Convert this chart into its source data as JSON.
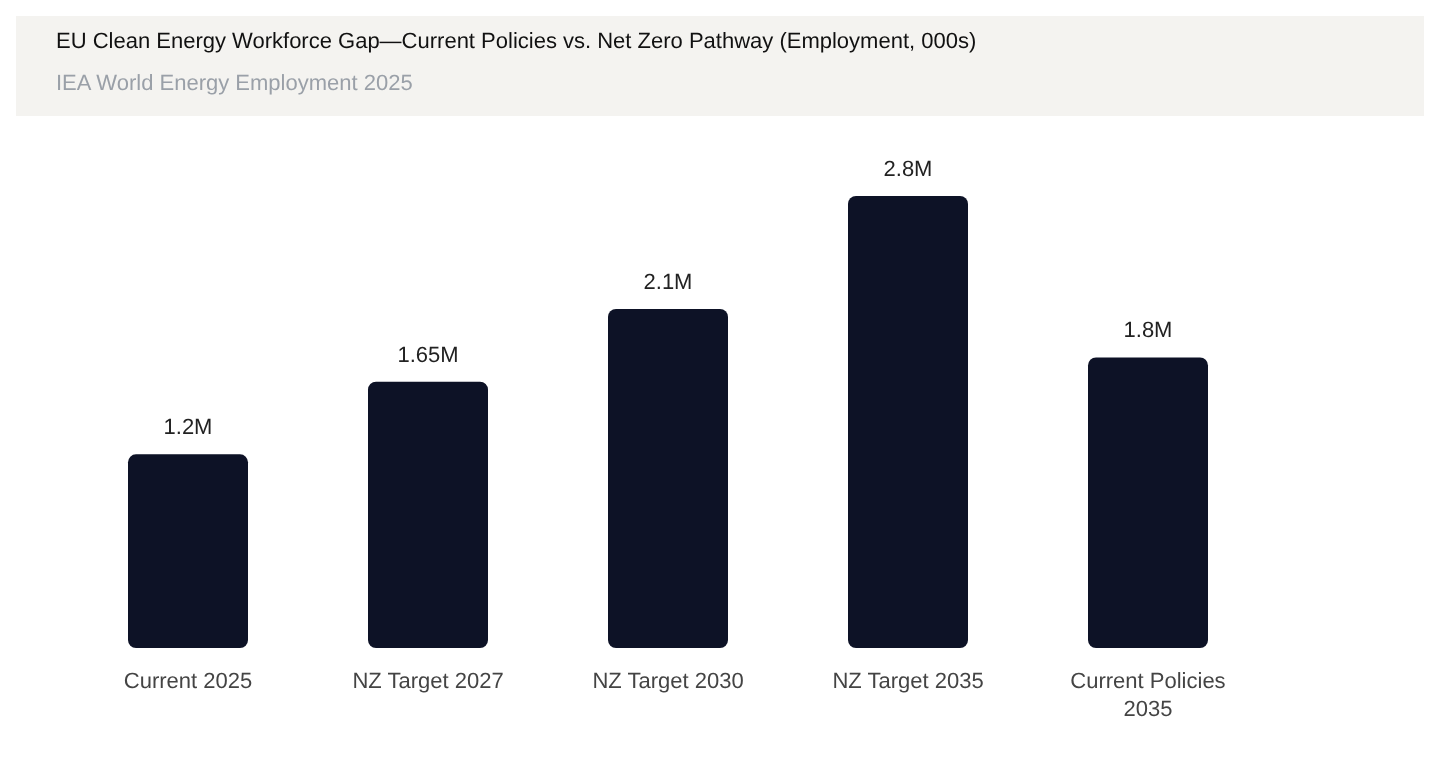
{
  "chart_data": {
    "type": "bar",
    "title": "EU Clean Energy Workforce Gap—Current Policies vs. Net Zero Pathway (Employment, 000s)",
    "subtitle": "IEA World Energy Employment 2025",
    "categories": [
      "Current 2025",
      "NZ Target 2027",
      "NZ Target 2030",
      "NZ Target 2035",
      "Current Policies 2035"
    ],
    "values": [
      1.2,
      1.65,
      2.1,
      2.8,
      1.8
    ],
    "value_labels": [
      "1.2M",
      "1.65M",
      "2.1M",
      "2.8M",
      "1.8M"
    ],
    "color": "#0d1226",
    "grid": false,
    "legend": false
  }
}
